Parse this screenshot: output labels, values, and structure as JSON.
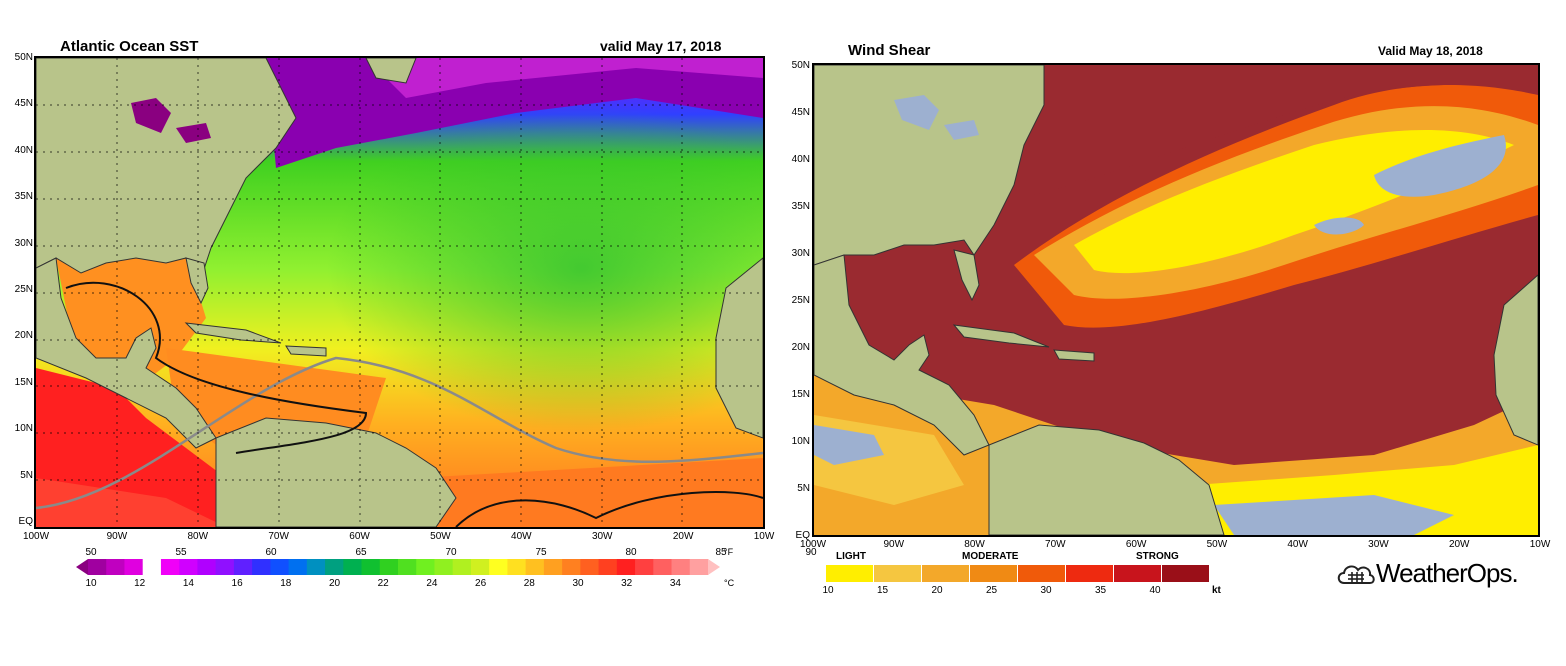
{
  "sst": {
    "title": "Atlantic Ocean SST",
    "valid": "valid May 17, 2018",
    "lat_labels": [
      "50N",
      "45N",
      "40N",
      "35N",
      "30N",
      "25N",
      "20N",
      "15N",
      "10N",
      "5N",
      "EQ"
    ],
    "lon_labels": [
      "100W",
      "90W",
      "80W",
      "70W",
      "60W",
      "50W",
      "40W",
      "30W",
      "20W",
      "10W"
    ],
    "colorbar": {
      "f_labels": [
        "50",
        "55",
        "60",
        "65",
        "70",
        "75",
        "80",
        "85",
        "90"
      ],
      "c_labels": [
        "10",
        "12",
        "14",
        "16",
        "18",
        "20",
        "22",
        "24",
        "26",
        "28",
        "30",
        "32",
        "34"
      ],
      "f_unit": "°F",
      "c_unit": "°C",
      "colors": [
        "#8a0080",
        "#a000a0",
        "#c000c0",
        "#e000e0",
        "#ffffff",
        "#f000f8",
        "#d000ff",
        "#b000ff",
        "#9010ff",
        "#6020ff",
        "#3030ff",
        "#1050ff",
        "#0070f0",
        "#0090c0",
        "#00a080",
        "#00b050",
        "#10c030",
        "#30d020",
        "#50e020",
        "#70f020",
        "#90f020",
        "#b0f020",
        "#d0f020",
        "#ffff20",
        "#ffe020",
        "#ffc020",
        "#ffa020",
        "#ff8020",
        "#ff6020",
        "#ff4020",
        "#ff2020",
        "#ff4040",
        "#ff6060",
        "#ff8080",
        "#ffa0a0",
        "#ffc0c0"
      ]
    }
  },
  "shear": {
    "title": "Wind Shear",
    "valid": "Valid May 18, 2018",
    "lat_labels": [
      "50N",
      "45N",
      "40N",
      "35N",
      "30N",
      "25N",
      "20N",
      "15N",
      "10N",
      "5N",
      "EQ"
    ],
    "lon_labels": [
      "100W",
      "90W",
      "80W",
      "70W",
      "60W",
      "50W",
      "40W",
      "30W",
      "20W",
      "10W"
    ],
    "colorbar": {
      "categories": [
        "LIGHT",
        "MODERATE",
        "STRONG"
      ],
      "labels": [
        "10",
        "15",
        "20",
        "25",
        "30",
        "35",
        "40"
      ],
      "unit": "kt",
      "colors": [
        "#ffee00",
        "#f5c640",
        "#f3a82a",
        "#f08a14",
        "#f05a0a",
        "#ee2a10",
        "#c8141c",
        "#9a0f18"
      ]
    }
  },
  "logo": {
    "text": "WeatherOps."
  }
}
